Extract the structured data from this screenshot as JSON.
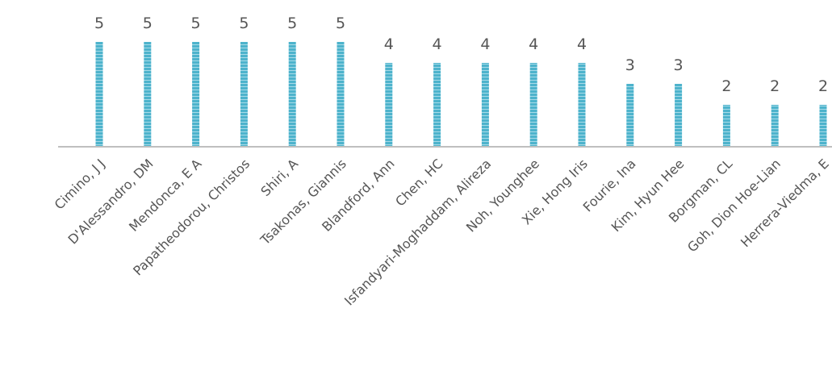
{
  "chart_data": {
    "type": "bar",
    "categories": [
      "Cimino, J J",
      "D'Alessandro, DM",
      "Mendonca, E A",
      "Papatheodorou, Christos",
      "Shiri, A",
      "Tsakonas, Giannis",
      "Blandford, Ann",
      "Chen, HC",
      "Isfandyari-Moghaddam, Alireza",
      "Noh, Younghee",
      "Xie, Hong Iris",
      "Fourie, Ina",
      "Kim, Hyun Hee",
      "Borgman, CL",
      "Goh, Dion Hoe-Lian",
      "Herrera-Viedma, E"
    ],
    "values": [
      5,
      5,
      5,
      5,
      5,
      5,
      4,
      4,
      4,
      4,
      4,
      3,
      3,
      2,
      2,
      2
    ],
    "ylim": [
      0,
      5
    ],
    "grid": false,
    "data_labels": true,
    "bar_color": "#4db3cc",
    "axis_color": "#bfbfbf",
    "label_color": "#555555"
  }
}
